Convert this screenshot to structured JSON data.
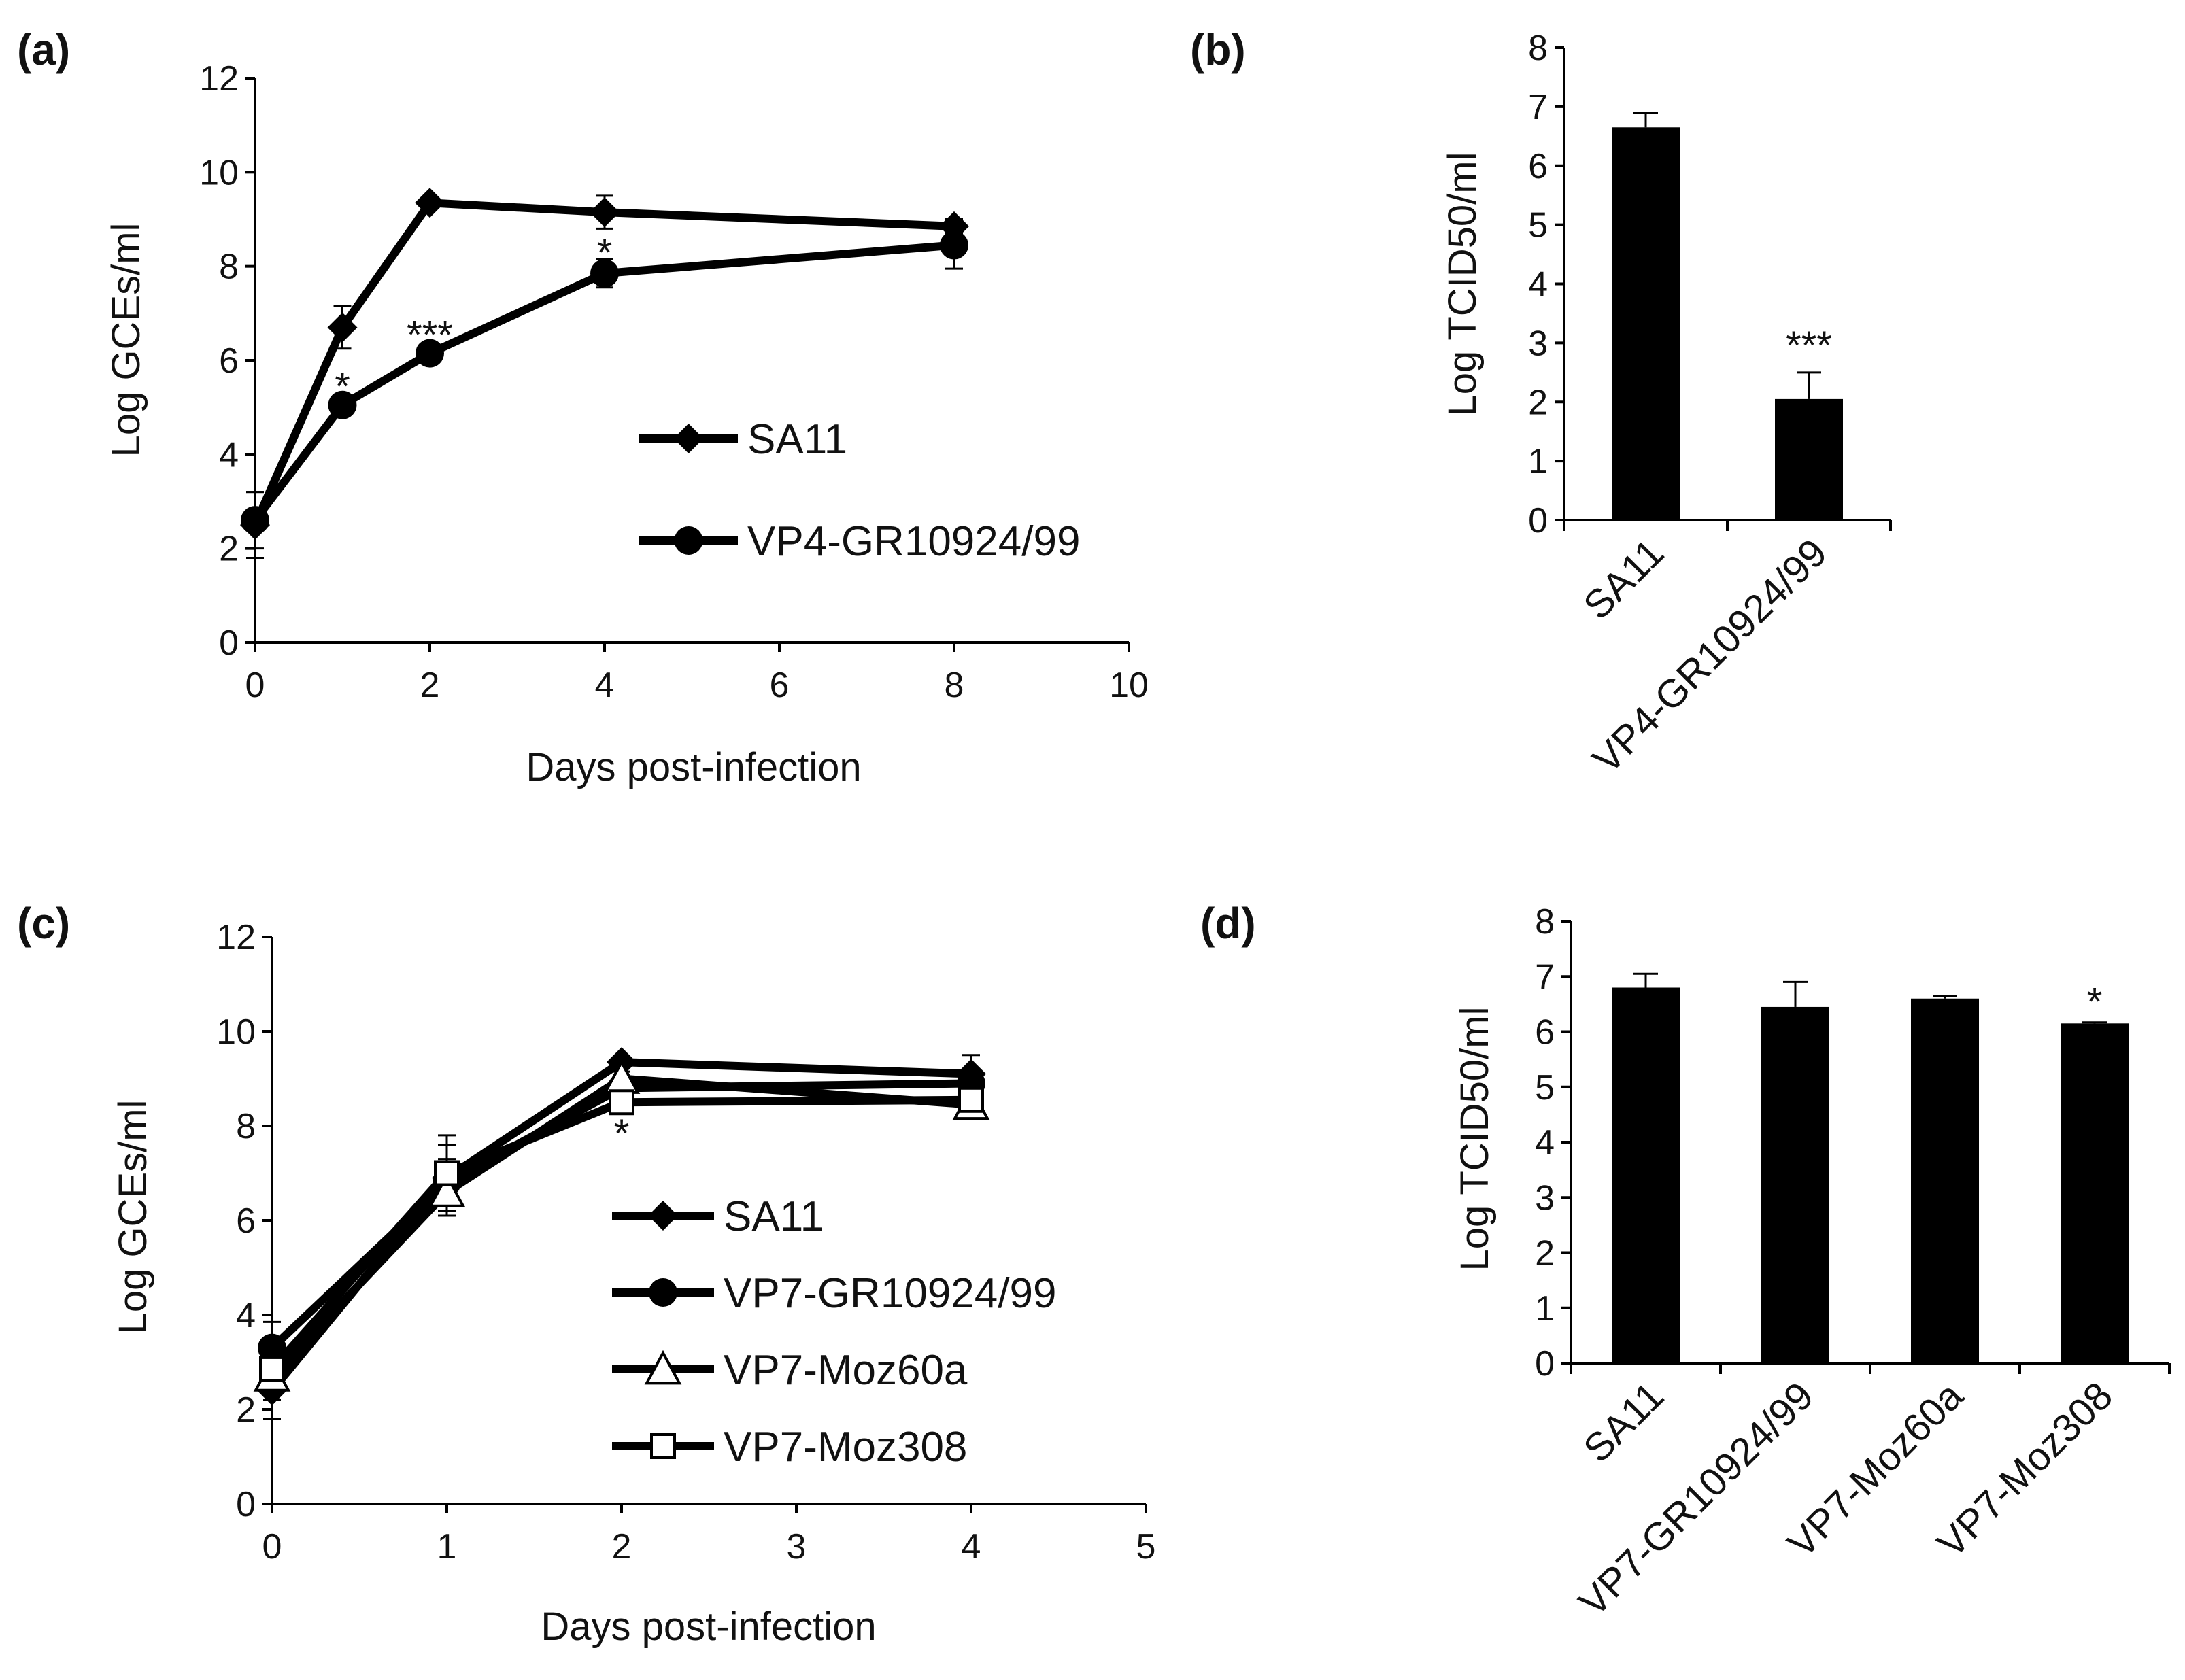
{
  "chart_data": [
    {
      "panel": "(a)",
      "type": "line",
      "xlabel": "Days post-infection",
      "ylabel": "Log GCEs/ml",
      "xlim": [
        0,
        10
      ],
      "ylim": [
        0,
        12
      ],
      "xticks": [
        0,
        2,
        4,
        6,
        8,
        10
      ],
      "yticks": [
        0,
        2,
        4,
        6,
        8,
        10,
        12
      ],
      "x": [
        0,
        1,
        2,
        4,
        8
      ],
      "series": [
        {
          "name": "SA11",
          "marker": "diamond",
          "values": [
            2.5,
            6.7,
            9.35,
            9.15,
            8.85
          ],
          "errors": [
            0.7,
            0.45,
            0.1,
            0.35,
            0.15
          ]
        },
        {
          "name": "VP4-GR10924/99",
          "marker": "circle",
          "values": [
            2.6,
            5.05,
            6.15,
            7.85,
            8.45
          ],
          "errors": [
            0.6,
            0.15,
            0.15,
            0.3,
            0.5
          ]
        }
      ],
      "annotations": [
        {
          "x": 1,
          "y": 5.5,
          "text": "*"
        },
        {
          "x": 2,
          "y": 6.6,
          "text": "***"
        },
        {
          "x": 4,
          "y": 8.35,
          "text": "*"
        }
      ]
    },
    {
      "panel": "(b)",
      "type": "bar",
      "ylabel": "Log TCID50/ml",
      "ylim": [
        0,
        8
      ],
      "yticks": [
        0,
        1,
        2,
        3,
        4,
        5,
        6,
        7,
        8
      ],
      "categories": [
        "SA11",
        "VP4-GR10924/99"
      ],
      "values": [
        6.65,
        2.05
      ],
      "errors": [
        0.25,
        0.45
      ],
      "annotations": [
        {
          "category": "VP4-GR10924/99",
          "text": "***"
        }
      ]
    },
    {
      "panel": "(c)",
      "type": "line",
      "xlabel": "Days post-infection",
      "ylabel": "Log GCEs/ml",
      "xlim": [
        0,
        5
      ],
      "ylim": [
        0,
        12
      ],
      "xticks": [
        0,
        1,
        2,
        3,
        4,
        5
      ],
      "yticks": [
        0,
        2,
        4,
        6,
        8,
        10,
        12
      ],
      "x": [
        0,
        1,
        2,
        4
      ],
      "series": [
        {
          "name": "SA11",
          "marker": "diamond",
          "values": [
            2.4,
            6.9,
            9.35,
            9.1
          ],
          "errors": [
            0.6,
            0.7,
            0.1,
            0.4
          ]
        },
        {
          "name": "VP7-GR10924/99",
          "marker": "circle",
          "values": [
            3.3,
            6.8,
            8.8,
            8.9
          ],
          "errors": [
            0.55,
            0.5,
            0.1,
            0.2
          ]
        },
        {
          "name": "VP7-Moz60a",
          "marker": "triangle",
          "values": [
            2.7,
            6.6,
            9.0,
            8.45
          ],
          "errors": [
            0.5,
            0.5,
            0.15,
            0.2
          ]
        },
        {
          "name": "VP7-Moz308",
          "marker": "square",
          "values": [
            2.85,
            7.0,
            8.5,
            8.55
          ],
          "errors": [
            0.5,
            0.8,
            0.15,
            0.15
          ]
        }
      ],
      "annotations": [
        {
          "x": 2,
          "y": 7.9,
          "text": "*"
        }
      ]
    },
    {
      "panel": "(d)",
      "type": "bar",
      "ylabel": "Log TCID50/ml",
      "ylim": [
        0,
        8
      ],
      "yticks": [
        0,
        1,
        2,
        3,
        4,
        5,
        6,
        7,
        8
      ],
      "categories": [
        "SA11",
        "VP7-GR10924/99",
        "VP7-Moz60a",
        "VP7-Moz308"
      ],
      "values": [
        6.8,
        6.45,
        6.6,
        6.15
      ],
      "errors": [
        0.25,
        0.45,
        0.05,
        0.02
      ],
      "annotations": [
        {
          "category": "VP7-Moz308",
          "text": "*"
        }
      ]
    }
  ]
}
